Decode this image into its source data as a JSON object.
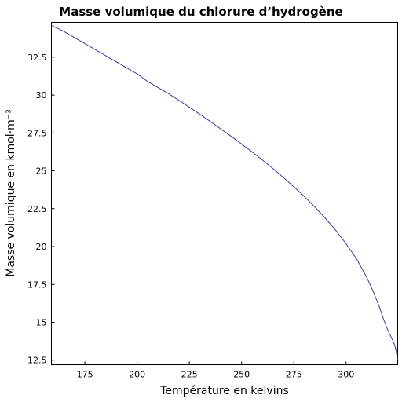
{
  "chart_data": {
    "type": "line",
    "title": "Masse volumique du chlorure d’hydrogène",
    "xlabel": "Température en kelvins",
    "ylabel": "Masse volumique en kmol·m⁻³",
    "xlim": [
      159,
      324.7
    ],
    "ylim": [
      12.2,
      34.8
    ],
    "xticks": [
      175,
      200,
      225,
      250,
      275,
      300
    ],
    "yticks": [
      12.5,
      15,
      17.5,
      20,
      22.5,
      25,
      27.5,
      30,
      32.5
    ],
    "grid": false,
    "legend": "none",
    "series": [
      {
        "color": "#3a3aa8",
        "x": [
          159,
          165,
          170,
          175,
          180,
          185,
          190,
          195,
          200,
          205,
          210,
          215,
          220,
          225,
          230,
          235,
          240,
          245,
          250,
          255,
          260,
          265,
          270,
          275,
          280,
          285,
          290,
          295,
          300,
          305,
          310,
          313,
          316,
          318,
          320,
          322,
          323,
          324,
          324.7
        ],
        "y": [
          34.6,
          34.2,
          33.8,
          33.4,
          33.0,
          32.6,
          32.2,
          31.8,
          31.4,
          30.9,
          30.5,
          30.1,
          29.65,
          29.2,
          28.74,
          28.26,
          27.77,
          27.28,
          26.77,
          26.25,
          25.71,
          25.15,
          24.56,
          23.95,
          23.31,
          22.62,
          21.88,
          21.08,
          20.19,
          19.19,
          17.94,
          17.03,
          16.0,
          15.17,
          14.48,
          13.9,
          13.6,
          13.1,
          12.5
        ]
      }
    ]
  }
}
